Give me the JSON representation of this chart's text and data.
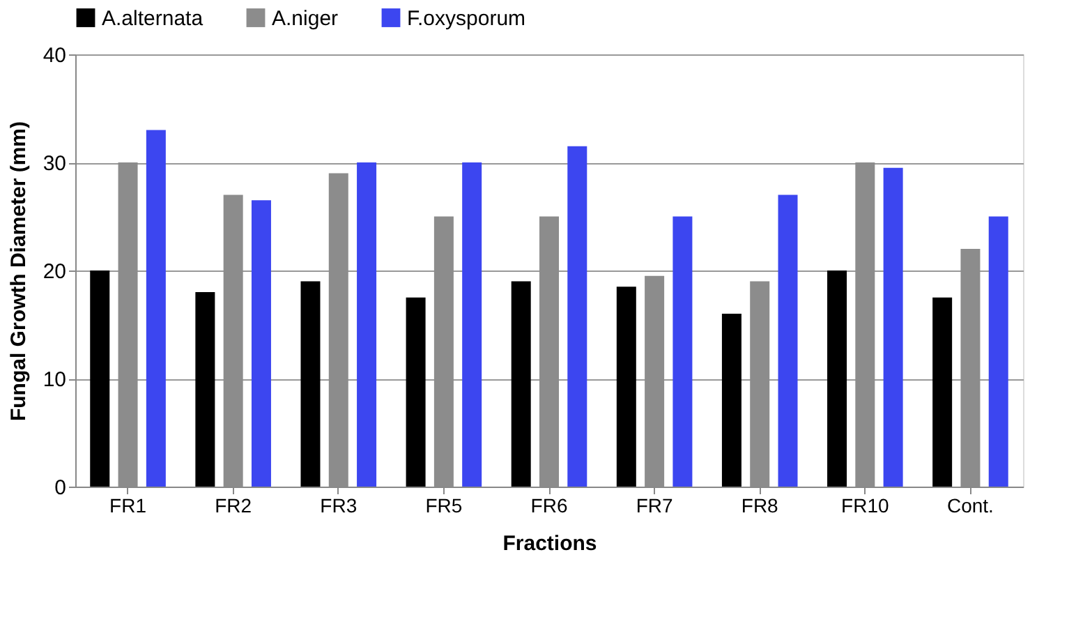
{
  "chart_data": {
    "type": "bar",
    "xlabel": "Fractions",
    "ylabel": "Fungal Growth Diameter (mm)",
    "categories": [
      "FR1",
      "FR2",
      "FR3",
      "FR5",
      "FR6",
      "FR7",
      "FR8",
      "FR10",
      "Cont."
    ],
    "series": [
      {
        "name": "A.alternata",
        "color": "#000000",
        "values": [
          20,
          18,
          19,
          17.5,
          19,
          18.5,
          16,
          20,
          17.5
        ]
      },
      {
        "name": "A.niger",
        "color": "#8c8c8c",
        "values": [
          30,
          27,
          29,
          25,
          25,
          19.5,
          19,
          30,
          22
        ]
      },
      {
        "name": "F.oxysporum",
        "color": "#3c46f0",
        "values": [
          33,
          26.5,
          30,
          30,
          31.5,
          25,
          27,
          29.5,
          25
        ]
      }
    ],
    "ylim": [
      0,
      40
    ],
    "yticks": [
      0,
      10,
      20,
      30,
      40
    ],
    "grid": "y",
    "legend": "top"
  }
}
